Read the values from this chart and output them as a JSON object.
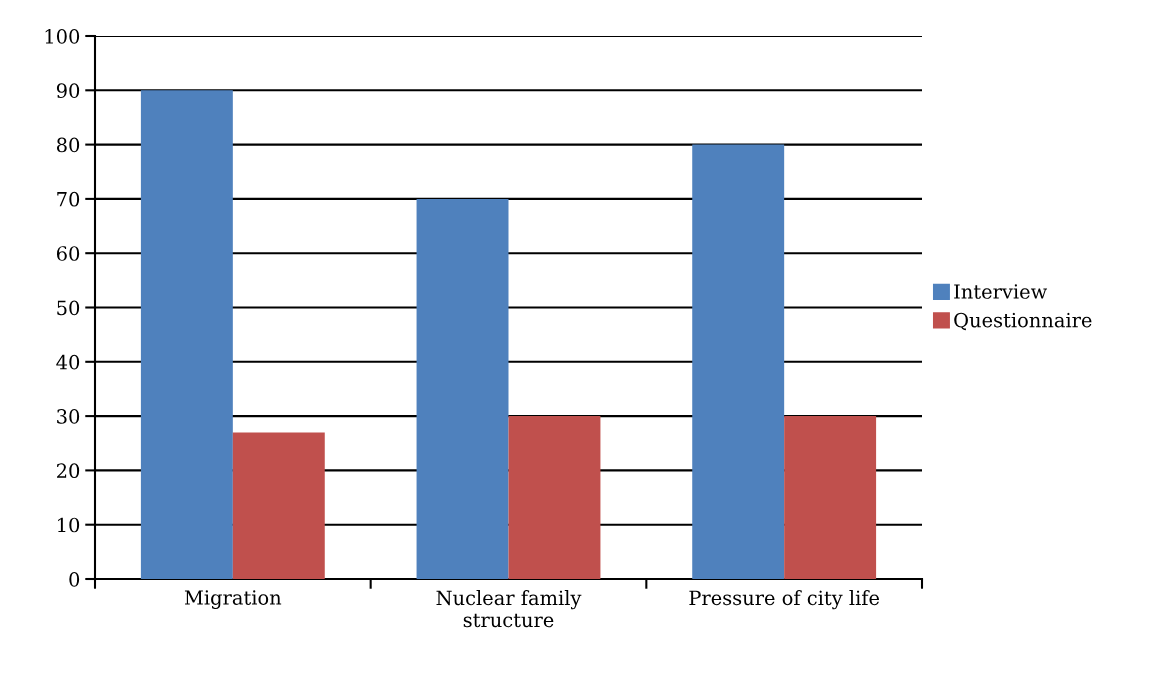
{
  "chart_data": {
    "type": "bar",
    "categories": [
      "Migration",
      "Nuclear family\nstructure",
      "Pressure of city life"
    ],
    "series": [
      {
        "name": "Interview",
        "color": "#4f81bd",
        "values": [
          90,
          70,
          80
        ]
      },
      {
        "name": "Questionnaire",
        "color": "#c0504d",
        "values": [
          27,
          30,
          30
        ]
      }
    ],
    "ylim": [
      0,
      100
    ],
    "yticks": [
      0,
      10,
      20,
      30,
      40,
      50,
      60,
      70,
      80,
      90,
      100
    ],
    "grid": "y",
    "legend": "right"
  }
}
